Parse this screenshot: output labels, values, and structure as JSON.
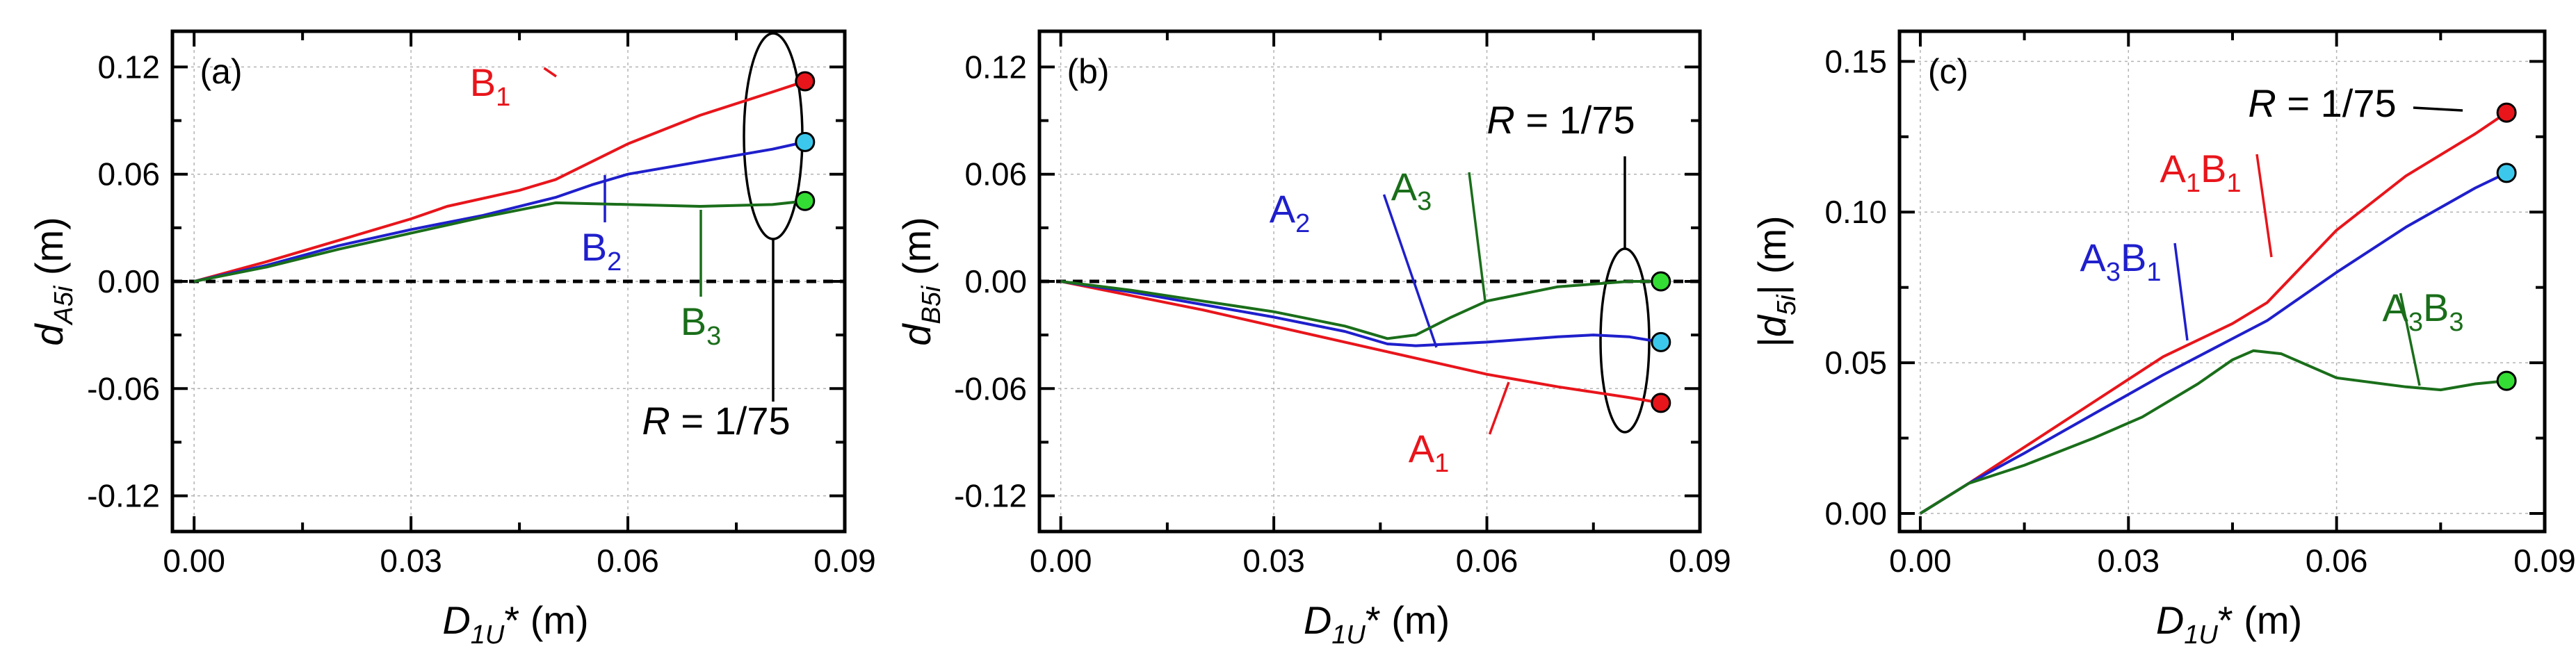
{
  "chart_data": [
    {
      "type": "line",
      "panel_label": "(a)",
      "title": "",
      "xlabel": {
        "main": "D",
        "sub": "1U",
        "suffix": "* (m)"
      },
      "ylabel": {
        "main": "d",
        "sub": "A5i",
        "suffix": " (m)"
      },
      "xlim": [
        -0.003,
        0.09
      ],
      "ylim": [
        -0.14,
        0.14
      ],
      "xticks": [
        0.0,
        0.03,
        0.06,
        0.09
      ],
      "xtick_labels": [
        "0.00",
        "0.03",
        "0.06",
        "0.09"
      ],
      "yticks": [
        -0.12,
        -0.06,
        0.0,
        0.06,
        0.12
      ],
      "ytick_labels": [
        "-0.12",
        "-0.06",
        "0.00",
        "0.06",
        "0.12"
      ],
      "grid": true,
      "zero_line": "dashed",
      "annotation": {
        "prefix": "R",
        "text": " = 1/75"
      },
      "series": [
        {
          "name": "B",
          "sub": "1",
          "color": "#e8151b",
          "marker": "#e8151b",
          "x": [
            0,
            0.01,
            0.02,
            0.03,
            0.035,
            0.045,
            0.05,
            0.06,
            0.07,
            0.08,
            0.0845
          ],
          "values": [
            0,
            0.011,
            0.023,
            0.035,
            0.042,
            0.051,
            0.057,
            0.077,
            0.093,
            0.106,
            0.112
          ]
        },
        {
          "name": "B",
          "sub": "2",
          "color": "#1f1fcc",
          "marker": "#3cc8ec",
          "x": [
            0,
            0.01,
            0.02,
            0.03,
            0.04,
            0.05,
            0.055,
            0.06,
            0.07,
            0.08,
            0.0845
          ],
          "values": [
            0,
            0.009,
            0.02,
            0.029,
            0.037,
            0.047,
            0.054,
            0.06,
            0.067,
            0.074,
            0.078
          ]
        },
        {
          "name": "B",
          "sub": "3",
          "color": "#1a6e1a",
          "marker": "#33dd33",
          "x": [
            0,
            0.01,
            0.02,
            0.03,
            0.04,
            0.05,
            0.06,
            0.07,
            0.08,
            0.0845
          ],
          "values": [
            0,
            0.008,
            0.018,
            0.027,
            0.036,
            0.044,
            0.043,
            0.042,
            0.043,
            0.045
          ]
        }
      ]
    },
    {
      "type": "line",
      "panel_label": "(b)",
      "title": "",
      "xlabel": {
        "main": "D",
        "sub": "1U",
        "suffix": "* (m)"
      },
      "ylabel": {
        "main": "d",
        "sub": "B5i",
        "suffix": " (m)"
      },
      "xlim": [
        -0.003,
        0.09
      ],
      "ylim": [
        -0.14,
        0.14
      ],
      "xticks": [
        0.0,
        0.03,
        0.06,
        0.09
      ],
      "xtick_labels": [
        "0.00",
        "0.03",
        "0.06",
        "0.09"
      ],
      "yticks": [
        -0.12,
        -0.06,
        0.0,
        0.06,
        0.12
      ],
      "ytick_labels": [
        "-0.12",
        "-0.06",
        "0.00",
        "0.06",
        "0.12"
      ],
      "grid": true,
      "zero_line": "dashed",
      "annotation": {
        "prefix": "R",
        "text": " = 1/75"
      },
      "series": [
        {
          "name": "A",
          "sub": "1",
          "color": "#e8151b",
          "marker": "#e8151b",
          "x": [
            0,
            0.01,
            0.02,
            0.03,
            0.04,
            0.05,
            0.06,
            0.07,
            0.08,
            0.0845
          ],
          "values": [
            0,
            -0.008,
            -0.016,
            -0.025,
            -0.034,
            -0.043,
            -0.052,
            -0.059,
            -0.065,
            -0.068
          ]
        },
        {
          "name": "A",
          "sub": "2",
          "color": "#1f1fcc",
          "marker": "#3cc8ec",
          "x": [
            0,
            0.01,
            0.02,
            0.03,
            0.04,
            0.046,
            0.05,
            0.06,
            0.07,
            0.075,
            0.08,
            0.0845
          ],
          "values": [
            0,
            -0.006,
            -0.013,
            -0.02,
            -0.028,
            -0.035,
            -0.036,
            -0.034,
            -0.031,
            -0.03,
            -0.031,
            -0.034
          ]
        },
        {
          "name": "A",
          "sub": "3",
          "color": "#1a6e1a",
          "marker": "#33dd33",
          "x": [
            0,
            0.01,
            0.02,
            0.03,
            0.04,
            0.046,
            0.05,
            0.055,
            0.06,
            0.07,
            0.08,
            0.0845
          ],
          "values": [
            0,
            -0.005,
            -0.011,
            -0.017,
            -0.025,
            -0.032,
            -0.03,
            -0.02,
            -0.011,
            -0.003,
            0,
            0
          ]
        }
      ]
    },
    {
      "type": "line",
      "panel_label": "(c)",
      "title": "",
      "xlabel": {
        "main": "D",
        "sub": "1U",
        "suffix": "* (m)"
      },
      "ylabel": {
        "prefix": "|",
        "main": "d",
        "sub": "5i",
        "suffix": "| (m)"
      },
      "xlim": [
        -0.003,
        0.09
      ],
      "ylim": [
        -0.006,
        0.16
      ],
      "xticks": [
        0.0,
        0.03,
        0.06,
        0.09
      ],
      "xtick_labels": [
        "0.00",
        "0.03",
        "0.06",
        "0.09"
      ],
      "yticks": [
        0.0,
        0.05,
        0.1,
        0.15
      ],
      "ytick_labels": [
        "0.00",
        "0.05",
        "0.10",
        "0.15"
      ],
      "grid": true,
      "zero_line": "none",
      "annotation": {
        "prefix": "R",
        "text": " = 1/75"
      },
      "series": [
        {
          "name": "A",
          "sub": "1",
          "name2": "B",
          "sub2": "1",
          "color": "#e8151b",
          "marker": "#e8151b",
          "x": [
            0,
            0.007,
            0.015,
            0.025,
            0.035,
            0.045,
            0.05,
            0.06,
            0.07,
            0.08,
            0.0845
          ],
          "values": [
            0,
            0.01,
            0.022,
            0.037,
            0.052,
            0.063,
            0.07,
            0.094,
            0.112,
            0.126,
            0.133
          ]
        },
        {
          "name": "A",
          "sub": "3",
          "name2": "B",
          "sub2": "1",
          "color": "#1f1fcc",
          "marker": "#3cc8ec",
          "x": [
            0,
            0.007,
            0.015,
            0.025,
            0.035,
            0.045,
            0.05,
            0.06,
            0.07,
            0.08,
            0.0845
          ],
          "values": [
            0,
            0.01,
            0.02,
            0.033,
            0.046,
            0.058,
            0.064,
            0.08,
            0.095,
            0.108,
            0.113
          ]
        },
        {
          "name": "A",
          "sub": "3",
          "name2": "B",
          "sub2": "3",
          "color": "#1a6e1a",
          "marker": "#33dd33",
          "x": [
            0,
            0.007,
            0.015,
            0.025,
            0.032,
            0.04,
            0.045,
            0.048,
            0.052,
            0.06,
            0.07,
            0.075,
            0.08,
            0.0845
          ],
          "values": [
            0,
            0.01,
            0.016,
            0.025,
            0.032,
            0.043,
            0.051,
            0.054,
            0.053,
            0.045,
            0.042,
            0.041,
            0.043,
            0.044
          ]
        }
      ]
    }
  ]
}
